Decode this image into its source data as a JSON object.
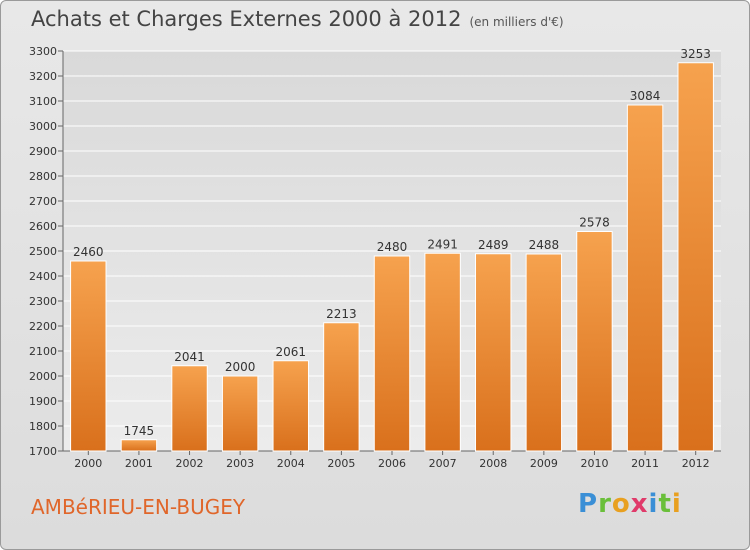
{
  "chart_data": {
    "type": "bar",
    "title": "Achats et Charges Externes 2000 à 2012",
    "unit": "(en milliers d'€)",
    "categories": [
      "2000",
      "2001",
      "2002",
      "2003",
      "2004",
      "2005",
      "2006",
      "2007",
      "2008",
      "2009",
      "2010",
      "2011",
      "2012"
    ],
    "values": [
      2460,
      1745,
      2041,
      2000,
      2061,
      2213,
      2480,
      2491,
      2489,
      2488,
      2578,
      3084,
      3253
    ],
    "ylim": [
      1700,
      3300
    ],
    "yticks": [
      1700,
      1800,
      1900,
      2000,
      2100,
      2200,
      2300,
      2400,
      2500,
      2600,
      2700,
      2800,
      2900,
      3000,
      3100,
      3200,
      3300
    ],
    "grid": true,
    "bar_color": "#f0923a"
  },
  "footer": {
    "commune": "AMBéRIEU-EN-BUGEY",
    "logo": [
      "P",
      "r",
      "o",
      "x",
      "i",
      "t",
      "i"
    ],
    "logo_colors": [
      "#3a8fd6",
      "#6abf3a",
      "#e8a020",
      "#e03a6a",
      "#3a8fd6",
      "#6abf3a",
      "#e8a020"
    ]
  }
}
